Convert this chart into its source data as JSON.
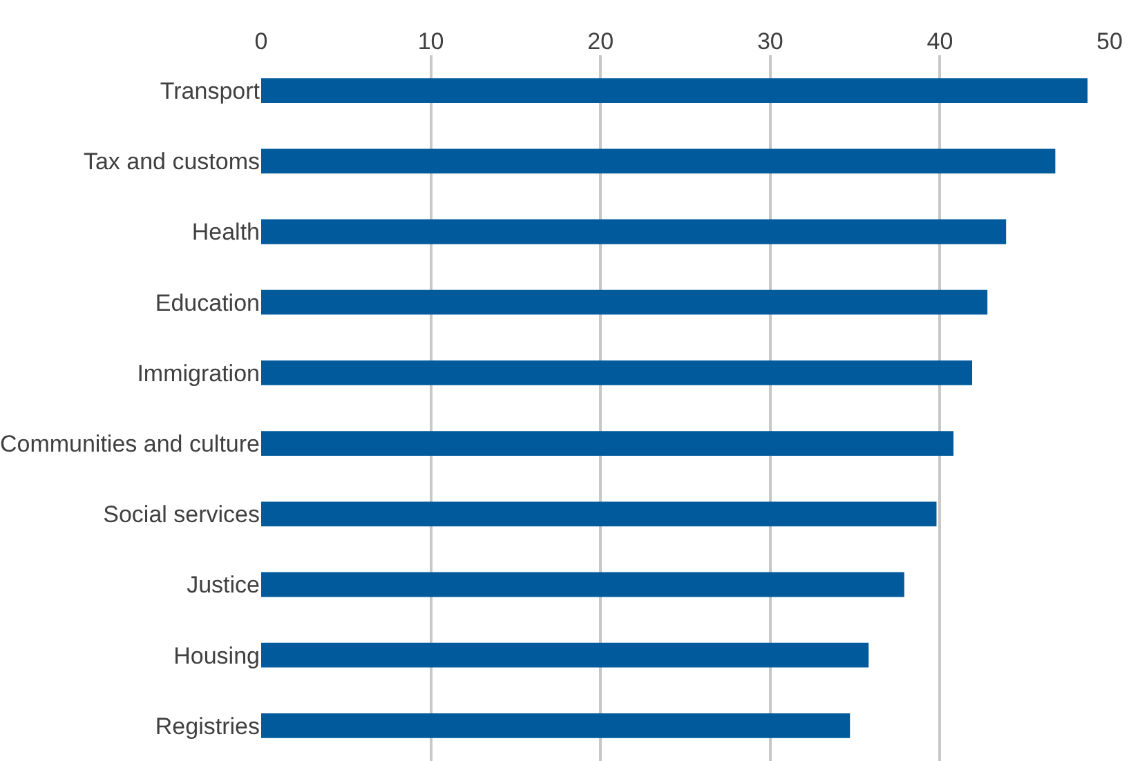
{
  "chart_data": {
    "type": "bar",
    "orientation": "horizontal",
    "categories": [
      "Transport",
      "Tax and customs",
      "Health",
      "Education",
      "Immigration",
      "Communities and culture",
      "Social services",
      "Justice",
      "Housing",
      "Registries"
    ],
    "values": [
      48.7,
      46.8,
      43.9,
      42.8,
      41.9,
      40.8,
      39.8,
      37.9,
      35.8,
      34.7
    ],
    "color": "#005a9c",
    "xlim": [
      0,
      50
    ],
    "xticks": [
      0,
      10,
      20,
      30,
      40,
      50
    ],
    "grid": "x"
  }
}
